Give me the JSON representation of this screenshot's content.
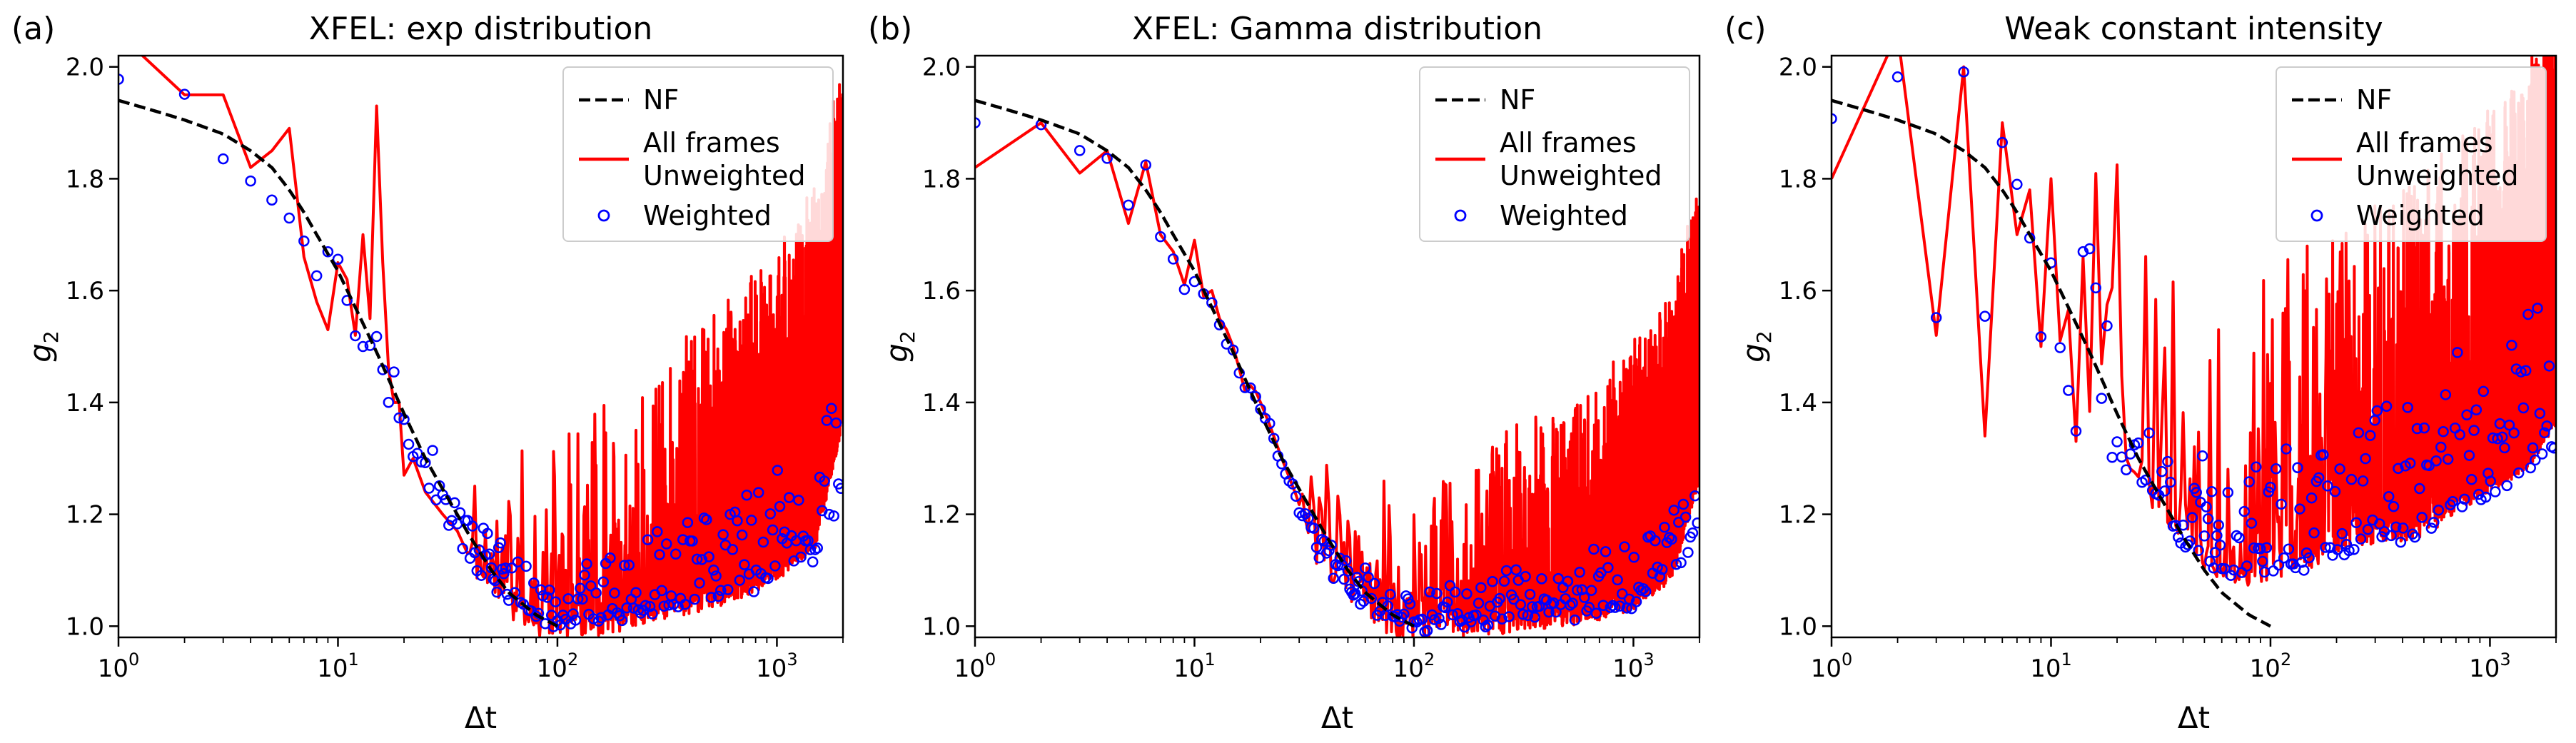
{
  "figure": {
    "background": "#ffffff",
    "colors": {
      "nf": "#000000",
      "unweighted": "#ff0000",
      "weighted": "#0000ff"
    }
  },
  "chart_data": [
    {
      "type": "line",
      "panel_label": "(a)",
      "title": "XFEL: exp distribution",
      "xlabel": "Δt",
      "ylabel": "g2",
      "xscale": "log",
      "xlim": [
        1,
        2000
      ],
      "ylim": [
        0.98,
        2.02
      ],
      "yticks": [
        1.0,
        1.2,
        1.4,
        1.6,
        1.8,
        2.0
      ],
      "ytick_labels": [
        "1.0",
        "1.2",
        "1.4",
        "1.6",
        "1.8",
        "2.0"
      ],
      "xtick_labels": [
        {
          "base": "10",
          "exp": "0"
        },
        {
          "base": "10",
          "exp": "1"
        },
        {
          "base": "10",
          "exp": "2"
        },
        {
          "base": "10",
          "exp": "3"
        }
      ],
      "legend": {
        "location": "upper right",
        "labels": [
          "NF",
          "All frames\nUnweighted",
          "Weighted"
        ]
      },
      "noise_seed": 11,
      "series": [
        {
          "name": "NF",
          "style": "dashed",
          "color": "#000000",
          "x": [
            1,
            1.5,
            2,
            3,
            4,
            5,
            6,
            7,
            8,
            10,
            12,
            15,
            20,
            25,
            30,
            40,
            50,
            60,
            80,
            100
          ],
          "y": [
            1.94,
            1.92,
            1.905,
            1.88,
            1.85,
            1.82,
            1.78,
            1.74,
            1.7,
            1.635,
            1.57,
            1.49,
            1.38,
            1.3,
            1.245,
            1.16,
            1.1,
            1.06,
            1.02,
            1.0
          ]
        },
        {
          "name": "Unweighted",
          "style": "solid",
          "color": "#ff0000",
          "x": [
            1,
            2,
            3,
            4,
            5,
            6,
            7,
            8,
            9,
            10,
            11,
            12,
            13,
            14,
            15,
            16,
            17,
            18,
            19,
            20,
            22,
            25,
            30,
            35,
            40,
            50,
            60,
            80,
            100,
            150,
            200,
            300,
            500,
            700,
            1000,
            1500,
            2000
          ],
          "y": [
            2.06,
            1.95,
            1.95,
            1.82,
            1.85,
            1.89,
            1.66,
            1.58,
            1.53,
            1.65,
            1.62,
            1.52,
            1.7,
            1.55,
            1.93,
            1.65,
            1.46,
            1.4,
            1.4,
            1.27,
            1.3,
            1.24,
            1.2,
            1.17,
            1.12,
            1.08,
            1.05,
            1.02,
            1.01,
            1.02,
            1.03,
            1.05,
            1.07,
            1.09,
            1.12,
            1.18,
            1.4
          ],
          "noise_start": 40,
          "noise_amp_min": 0.16,
          "noise_amp_max": 0.4
        },
        {
          "name": "Weighted",
          "style": "markers",
          "color": "#0000ff",
          "x": [
            1,
            2,
            3,
            4,
            5,
            6,
            7,
            8,
            9,
            10,
            11,
            12,
            13,
            14,
            15,
            16,
            17,
            18,
            19,
            20,
            22,
            25,
            30,
            35,
            40,
            50,
            60,
            80,
            100,
            150,
            200,
            300,
            500,
            700,
            1000,
            1500,
            2000
          ],
          "y": [
            1.985,
            1.955,
            1.83,
            1.79,
            1.77,
            1.72,
            1.69,
            1.63,
            1.66,
            1.66,
            1.58,
            1.52,
            1.5,
            1.51,
            1.51,
            1.46,
            1.41,
            1.45,
            1.38,
            1.36,
            1.31,
            1.28,
            1.22,
            1.17,
            1.13,
            1.09,
            1.06,
            1.03,
            1.02,
            1.03,
            1.03,
            1.04,
            1.06,
            1.07,
            1.1,
            1.13,
            1.25
          ],
          "noise_start": 25,
          "noise_amp_min": 0.06,
          "noise_amp_max": 0.22
        }
      ]
    },
    {
      "type": "line",
      "panel_label": "(b)",
      "title": "XFEL: Gamma distribution",
      "xlabel": "Δt",
      "ylabel": "g2",
      "xscale": "log",
      "xlim": [
        1,
        2000
      ],
      "ylim": [
        0.98,
        2.02
      ],
      "yticks": [
        1.0,
        1.2,
        1.4,
        1.6,
        1.8,
        2.0
      ],
      "ytick_labels": [
        "1.0",
        "1.2",
        "1.4",
        "1.6",
        "1.8",
        "2.0"
      ],
      "xtick_labels": [
        {
          "base": "10",
          "exp": "0"
        },
        {
          "base": "10",
          "exp": "1"
        },
        {
          "base": "10",
          "exp": "2"
        },
        {
          "base": "10",
          "exp": "3"
        }
      ],
      "legend": {
        "location": "upper right",
        "labels": [
          "NF",
          "All frames\nUnweighted",
          "Weighted"
        ]
      },
      "noise_seed": 23,
      "series": [
        {
          "name": "NF",
          "style": "dashed",
          "color": "#000000",
          "x": [
            1,
            1.5,
            2,
            3,
            4,
            5,
            6,
            7,
            8,
            10,
            12,
            15,
            20,
            25,
            30,
            40,
            50,
            60,
            80,
            100
          ],
          "y": [
            1.94,
            1.92,
            1.905,
            1.88,
            1.85,
            1.82,
            1.78,
            1.74,
            1.7,
            1.635,
            1.57,
            1.49,
            1.38,
            1.3,
            1.245,
            1.16,
            1.1,
            1.06,
            1.02,
            1.0
          ]
        },
        {
          "name": "Unweighted",
          "style": "solid",
          "color": "#ff0000",
          "x": [
            1,
            2,
            3,
            4,
            5,
            6,
            7,
            8,
            9,
            10,
            11,
            12,
            13,
            14,
            15,
            16,
            17,
            18,
            19,
            20,
            22,
            25,
            30,
            35,
            40,
            50,
            60,
            80,
            100,
            150,
            200,
            300,
            500,
            700,
            1000,
            1500,
            2000
          ],
          "y": [
            1.82,
            1.9,
            1.81,
            1.85,
            1.72,
            1.83,
            1.7,
            1.67,
            1.61,
            1.69,
            1.59,
            1.6,
            1.55,
            1.53,
            1.5,
            1.46,
            1.42,
            1.43,
            1.42,
            1.4,
            1.36,
            1.3,
            1.22,
            1.16,
            1.12,
            1.08,
            1.05,
            1.02,
            1.01,
            1.02,
            1.02,
            1.03,
            1.04,
            1.05,
            1.07,
            1.12,
            1.3
          ],
          "noise_start": 30,
          "noise_amp_min": 0.1,
          "noise_amp_max": 0.32
        },
        {
          "name": "Weighted",
          "style": "markers",
          "color": "#0000ff",
          "x": [
            1,
            2,
            3,
            4,
            5,
            6,
            7,
            8,
            9,
            10,
            11,
            12,
            13,
            14,
            15,
            16,
            17,
            18,
            19,
            20,
            22,
            25,
            30,
            35,
            40,
            50,
            60,
            80,
            100,
            150,
            200,
            300,
            500,
            700,
            1000,
            1500,
            2000
          ],
          "y": [
            1.9,
            1.9,
            1.85,
            1.84,
            1.75,
            1.82,
            1.7,
            1.66,
            1.61,
            1.61,
            1.59,
            1.58,
            1.53,
            1.51,
            1.49,
            1.46,
            1.43,
            1.43,
            1.41,
            1.38,
            1.36,
            1.29,
            1.22,
            1.16,
            1.12,
            1.08,
            1.05,
            1.02,
            1.01,
            1.02,
            1.02,
            1.03,
            1.03,
            1.04,
            1.05,
            1.09,
            1.2
          ],
          "noise_start": 30,
          "noise_amp_min": 0.04,
          "noise_amp_max": 0.14
        }
      ]
    },
    {
      "type": "line",
      "panel_label": "(c)",
      "title": "Weak constant intensity",
      "xlabel": "Δt",
      "ylabel": "g2",
      "xscale": "log",
      "xlim": [
        1,
        2000
      ],
      "ylim": [
        0.98,
        2.02
      ],
      "yticks": [
        1.0,
        1.2,
        1.4,
        1.6,
        1.8,
        2.0
      ],
      "ytick_labels": [
        "1.0",
        "1.2",
        "1.4",
        "1.6",
        "1.8",
        "2.0"
      ],
      "xtick_labels": [
        {
          "base": "10",
          "exp": "0"
        },
        {
          "base": "10",
          "exp": "1"
        },
        {
          "base": "10",
          "exp": "2"
        },
        {
          "base": "10",
          "exp": "3"
        }
      ],
      "legend": {
        "location": "upper right",
        "labels": [
          "NF",
          "All frames\nUnweighted",
          "Weighted"
        ]
      },
      "noise_seed": 37,
      "series": [
        {
          "name": "NF",
          "style": "dashed",
          "color": "#000000",
          "x": [
            1,
            1.5,
            2,
            3,
            4,
            5,
            6,
            7,
            8,
            10,
            12,
            15,
            20,
            25,
            30,
            40,
            50,
            60,
            80,
            100
          ],
          "y": [
            1.94,
            1.92,
            1.905,
            1.88,
            1.85,
            1.82,
            1.78,
            1.74,
            1.7,
            1.635,
            1.57,
            1.49,
            1.38,
            1.3,
            1.245,
            1.16,
            1.1,
            1.06,
            1.02,
            1.0
          ]
        },
        {
          "name": "Unweighted",
          "style": "solid",
          "color": "#ff0000",
          "x": [
            1,
            2,
            3,
            4,
            5,
            6,
            7,
            8,
            9,
            10,
            11,
            12,
            13,
            14,
            15,
            16,
            17,
            18,
            19,
            20,
            22,
            25,
            30,
            35,
            40,
            50,
            60,
            80,
            100,
            150,
            200,
            300,
            500,
            700,
            1000,
            1500,
            2000
          ],
          "y": [
            1.8,
            2.06,
            1.52,
            2.0,
            1.34,
            1.9,
            1.7,
            1.78,
            1.5,
            1.8,
            1.51,
            1.55,
            1.36,
            1.68,
            1.42,
            1.72,
            1.41,
            1.6,
            1.3,
            1.45,
            1.32,
            1.28,
            1.24,
            1.2,
            1.18,
            1.12,
            1.1,
            1.1,
            1.12,
            1.14,
            1.16,
            1.18,
            1.2,
            1.24,
            1.28,
            1.32,
            1.4
          ],
          "noise_start": 12,
          "noise_amp_min": 0.25,
          "noise_amp_max": 0.45
        },
        {
          "name": "Weighted",
          "style": "markers",
          "color": "#0000ff",
          "x": [
            1,
            2,
            3,
            4,
            5,
            6,
            7,
            8,
            9,
            10,
            11,
            12,
            13,
            14,
            15,
            16,
            17,
            18,
            19,
            20,
            22,
            25,
            30,
            35,
            40,
            50,
            60,
            80,
            100,
            150,
            200,
            300,
            500,
            700,
            1000,
            1500,
            2000
          ],
          "y": [
            1.91,
            1.99,
            1.55,
            1.99,
            1.56,
            1.86,
            1.78,
            1.69,
            1.51,
            1.64,
            1.5,
            1.44,
            1.35,
            1.68,
            1.6,
            1.57,
            1.42,
            1.55,
            1.3,
            1.32,
            1.3,
            1.28,
            1.24,
            1.19,
            1.16,
            1.12,
            1.1,
            1.1,
            1.1,
            1.12,
            1.14,
            1.16,
            1.18,
            1.22,
            1.25,
            1.28,
            1.34
          ],
          "noise_start": 12,
          "noise_amp_min": 0.15,
          "noise_amp_max": 0.32
        }
      ]
    }
  ]
}
